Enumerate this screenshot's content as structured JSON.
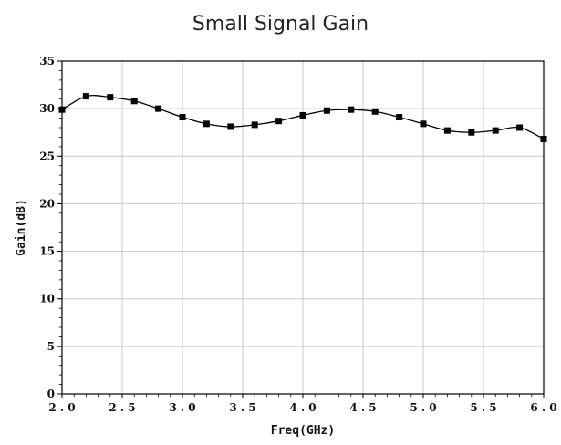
{
  "chart_data": {
    "type": "line",
    "title": "Small Signal Gain",
    "xlabel": "Freq(GHz)",
    "ylabel": "Gain(dB)",
    "xlim": [
      2.0,
      6.0
    ],
    "ylim": [
      0,
      35
    ],
    "x_ticks": [
      "2.0",
      "2.5",
      "3.0",
      "3.5",
      "4.0",
      "4.5",
      "5.0",
      "5.5",
      "6.0"
    ],
    "y_ticks": [
      "0",
      "5",
      "10",
      "15",
      "20",
      "25",
      "30",
      "35"
    ],
    "grid": true,
    "legend": "none",
    "series": [
      {
        "marker": "square",
        "color": "#000000",
        "x": [
          2.0,
          2.2,
          2.4,
          2.6,
          2.8,
          3.0,
          3.2,
          3.4,
          3.6,
          3.8,
          4.0,
          4.2,
          4.4,
          4.6,
          4.8,
          5.0,
          5.2,
          5.4,
          5.6,
          5.8,
          6.0
        ],
        "y": [
          29.9,
          31.3,
          31.2,
          30.8,
          30.0,
          29.1,
          28.4,
          28.1,
          28.3,
          28.7,
          29.3,
          29.8,
          29.9,
          29.7,
          29.1,
          28.4,
          27.7,
          27.5,
          27.7,
          28.0,
          26.8
        ]
      }
    ]
  }
}
